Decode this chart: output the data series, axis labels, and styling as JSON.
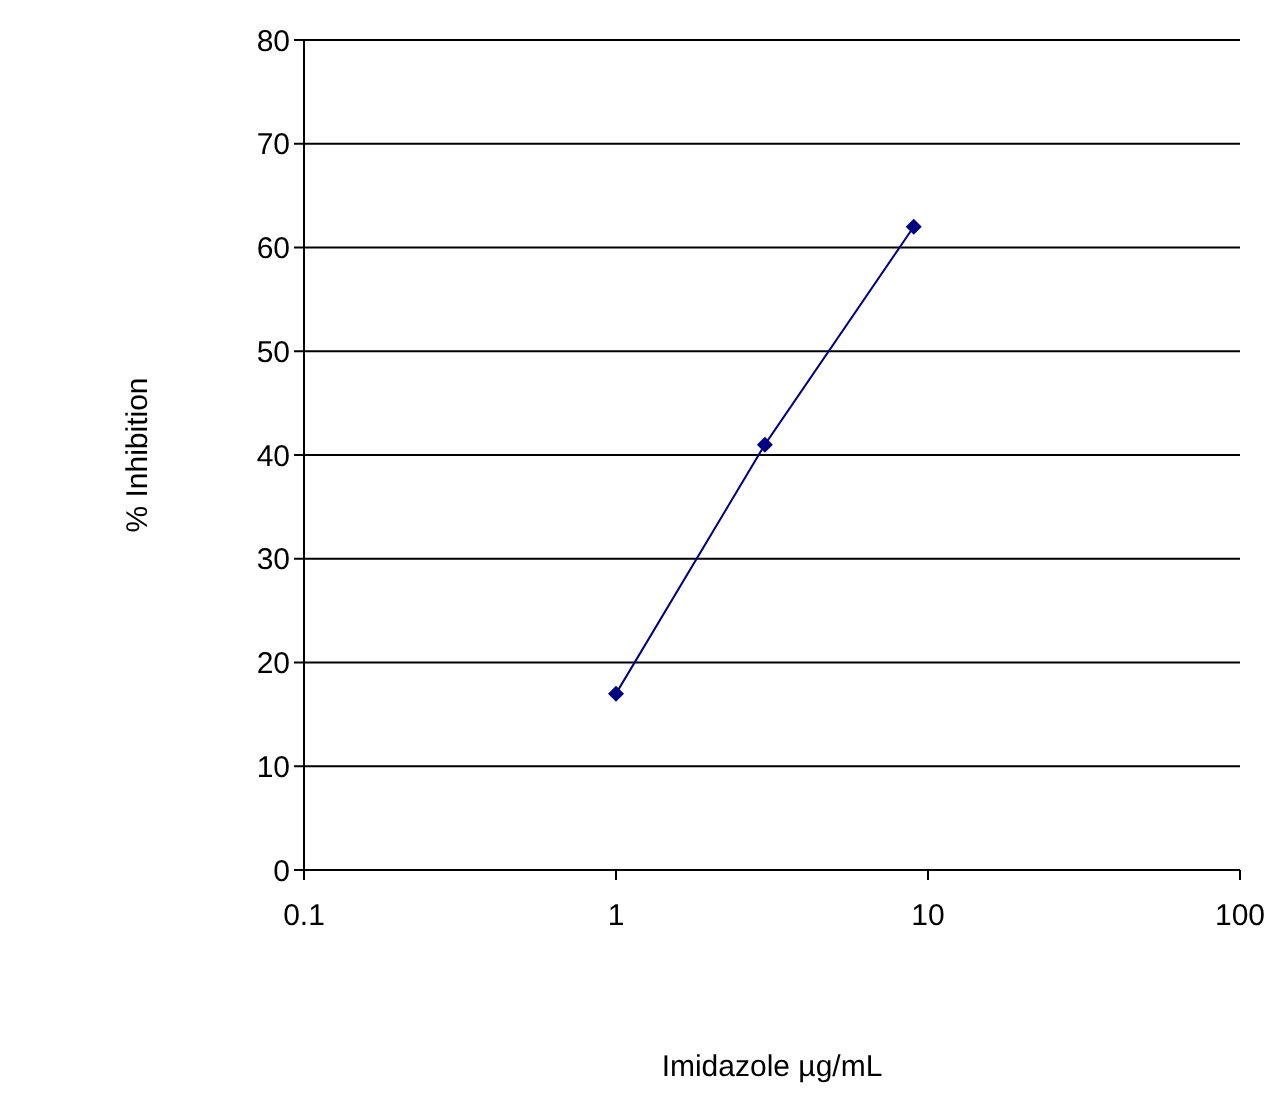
{
  "chart_data": {
    "type": "line",
    "xlabel": "Imidazole µg/mL",
    "ylabel": "% Inhibition",
    "log": "x",
    "xlim": [
      0.1,
      100
    ],
    "xticks": [
      0.1,
      1,
      10,
      100
    ],
    "ylim": [
      0,
      80
    ],
    "yticks": [
      0,
      10,
      20,
      30,
      40,
      50,
      60,
      70,
      80
    ],
    "grid": "y",
    "marker": "diamond",
    "line_style": "solid",
    "x": [
      1,
      3,
      9
    ],
    "series": [
      {
        "color": "#000080",
        "values": [
          17,
          41,
          62
        ]
      }
    ]
  }
}
